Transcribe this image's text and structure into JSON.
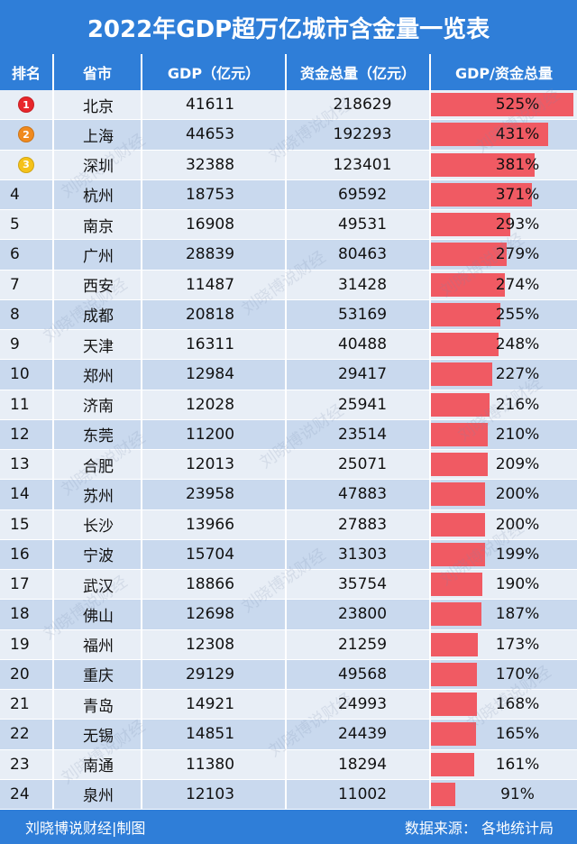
{
  "title": "2022年GDP超万亿城市含金量一览表",
  "headers": {
    "rank": "排名",
    "city": "省市",
    "gdp": "GDP（亿元）",
    "fund": "资金总量（亿元）",
    "ratio": "GDP/资金总量"
  },
  "rows": [
    {
      "rank": "1",
      "city": "北京",
      "gdp": "41611",
      "fund": "218629",
      "ratio": "525%",
      "ratio_value": 525,
      "medal": "red"
    },
    {
      "rank": "2",
      "city": "上海",
      "gdp": "44653",
      "fund": "192293",
      "ratio": "431%",
      "ratio_value": 431,
      "medal": "orange"
    },
    {
      "rank": "3",
      "city": "深圳",
      "gdp": "32388",
      "fund": "123401",
      "ratio": "381%",
      "ratio_value": 381,
      "medal": "yellow"
    },
    {
      "rank": "4",
      "city": "杭州",
      "gdp": "18753",
      "fund": "69592",
      "ratio": "371%",
      "ratio_value": 371
    },
    {
      "rank": "5",
      "city": "南京",
      "gdp": "16908",
      "fund": "49531",
      "ratio": "293%",
      "ratio_value": 293
    },
    {
      "rank": "6",
      "city": "广州",
      "gdp": "28839",
      "fund": "80463",
      "ratio": "279%",
      "ratio_value": 279
    },
    {
      "rank": "7",
      "city": "西安",
      "gdp": "11487",
      "fund": "31428",
      "ratio": "274%",
      "ratio_value": 274
    },
    {
      "rank": "8",
      "city": "成都",
      "gdp": "20818",
      "fund": "53169",
      "ratio": "255%",
      "ratio_value": 255
    },
    {
      "rank": "9",
      "city": "天津",
      "gdp": "16311",
      "fund": "40488",
      "ratio": "248%",
      "ratio_value": 248
    },
    {
      "rank": "10",
      "city": "郑州",
      "gdp": "12984",
      "fund": "29417",
      "ratio": "227%",
      "ratio_value": 227
    },
    {
      "rank": "11",
      "city": "济南",
      "gdp": "12028",
      "fund": "25941",
      "ratio": "216%",
      "ratio_value": 216
    },
    {
      "rank": "12",
      "city": "东莞",
      "gdp": "11200",
      "fund": "23514",
      "ratio": "210%",
      "ratio_value": 210
    },
    {
      "rank": "13",
      "city": "合肥",
      "gdp": "12013",
      "fund": "25071",
      "ratio": "209%",
      "ratio_value": 209
    },
    {
      "rank": "14",
      "city": "苏州",
      "gdp": "23958",
      "fund": "47883",
      "ratio": "200%",
      "ratio_value": 200
    },
    {
      "rank": "15",
      "city": "长沙",
      "gdp": "13966",
      "fund": "27883",
      "ratio": "200%",
      "ratio_value": 200
    },
    {
      "rank": "16",
      "city": "宁波",
      "gdp": "15704",
      "fund": "31303",
      "ratio": "199%",
      "ratio_value": 199
    },
    {
      "rank": "17",
      "city": "武汉",
      "gdp": "18866",
      "fund": "35754",
      "ratio": "190%",
      "ratio_value": 190
    },
    {
      "rank": "18",
      "city": "佛山",
      "gdp": "12698",
      "fund": "23800",
      "ratio": "187%",
      "ratio_value": 187
    },
    {
      "rank": "19",
      "city": "福州",
      "gdp": "12308",
      "fund": "21259",
      "ratio": "173%",
      "ratio_value": 173
    },
    {
      "rank": "20",
      "city": "重庆",
      "gdp": "29129",
      "fund": "49568",
      "ratio": "170%",
      "ratio_value": 170
    },
    {
      "rank": "21",
      "city": "青岛",
      "gdp": "14921",
      "fund": "24993",
      "ratio": "168%",
      "ratio_value": 168
    },
    {
      "rank": "22",
      "city": "无锡",
      "gdp": "14851",
      "fund": "24439",
      "ratio": "165%",
      "ratio_value": 165
    },
    {
      "rank": "23",
      "city": "南通",
      "gdp": "11380",
      "fund": "18294",
      "ratio": "161%",
      "ratio_value": 161
    },
    {
      "rank": "24",
      "city": "泉州",
      "gdp": "12103",
      "fund": "11002",
      "ratio": "91%",
      "ratio_value": 91
    }
  ],
  "footer": {
    "credit": "刘晓博说财经|制图",
    "source": "数据来源：  各地统计局"
  },
  "watermark": "刘晓博说财经",
  "colors": {
    "header_bg": "#2F7ED8",
    "bar": "#F05A63",
    "row_light": "#E8EEF6",
    "row_dark": "#C9D9EE",
    "medal_red": "#E8262B",
    "medal_orange": "#F08A1E",
    "medal_yellow": "#F5C21A"
  }
}
